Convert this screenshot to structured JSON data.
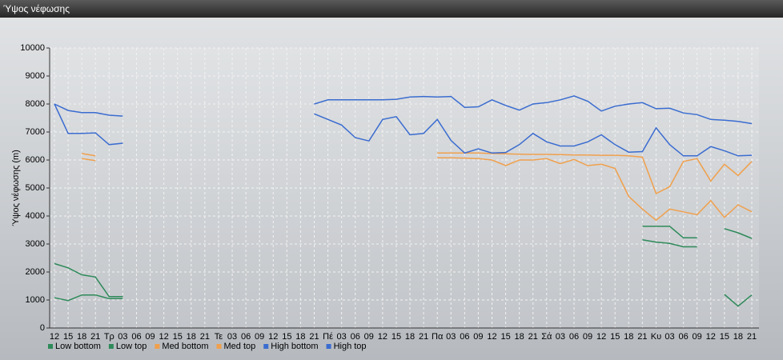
{
  "chart_data": {
    "type": "line",
    "title": "Ύψος νέφωσης",
    "y_label": "Ύψος νέφωσης (m)",
    "categories": [
      "12",
      "15",
      "18",
      "21",
      "Τρ",
      "03",
      "06",
      "09",
      "12",
      "15",
      "18",
      "21",
      "Τε",
      "03",
      "06",
      "09",
      "12",
      "15",
      "18",
      "21",
      "Πέ",
      "03",
      "06",
      "09",
      "12",
      "15",
      "18",
      "21",
      "Πα",
      "03",
      "06",
      "09",
      "12",
      "15",
      "18",
      "21",
      "Σά",
      "03",
      "06",
      "09",
      "12",
      "15",
      "18",
      "21",
      "Κυ",
      "03",
      "06",
      "09",
      "12",
      "15",
      "18",
      "21"
    ],
    "ylim": [
      0,
      10000
    ],
    "yticks": [
      0,
      1000,
      2000,
      3000,
      4000,
      5000,
      6000,
      7000,
      8000,
      9000,
      10000
    ],
    "grid": true,
    "legend": "bottom",
    "series": [
      {
        "name": "Low bottom",
        "color": "#2e8a5a",
        "values": [
          1080,
          980,
          1180,
          1180,
          1050,
          1050,
          null,
          null,
          null,
          null,
          null,
          null,
          null,
          null,
          null,
          null,
          null,
          null,
          null,
          null,
          null,
          null,
          null,
          null,
          null,
          null,
          null,
          null,
          null,
          null,
          null,
          null,
          null,
          null,
          null,
          null,
          null,
          null,
          null,
          null,
          null,
          null,
          null,
          3150,
          3070,
          3020,
          2900,
          2900,
          null,
          1200,
          780,
          1180
        ]
      },
      {
        "name": "Low top",
        "color": "#2e8a5a",
        "values": [
          2300,
          2150,
          1900,
          1820,
          1120,
          1120,
          null,
          null,
          null,
          null,
          null,
          null,
          null,
          null,
          null,
          null,
          null,
          null,
          null,
          null,
          null,
          null,
          null,
          null,
          null,
          null,
          null,
          null,
          null,
          null,
          null,
          null,
          null,
          null,
          null,
          null,
          null,
          null,
          null,
          null,
          null,
          null,
          null,
          3630,
          3630,
          3630,
          3220,
          3220,
          null,
          3550,
          3400,
          3200
        ]
      },
      {
        "name": "Med bottom",
        "color": "#f0a04c",
        "values": [
          null,
          null,
          6050,
          5980,
          null,
          null,
          null,
          null,
          null,
          null,
          null,
          null,
          null,
          null,
          null,
          null,
          null,
          null,
          null,
          null,
          null,
          null,
          null,
          null,
          null,
          null,
          null,
          null,
          6080,
          6080,
          6070,
          6050,
          6000,
          5800,
          6000,
          6000,
          6050,
          5870,
          6020,
          5800,
          5850,
          5700,
          4700,
          4250,
          3850,
          4250,
          4150,
          4050,
          4550,
          3950,
          4400,
          4150
        ]
      },
      {
        "name": "Med top",
        "color": "#f0a04c",
        "values": [
          null,
          null,
          6230,
          6150,
          null,
          null,
          null,
          null,
          null,
          null,
          null,
          null,
          null,
          null,
          null,
          null,
          null,
          null,
          null,
          null,
          null,
          null,
          null,
          null,
          null,
          null,
          null,
          null,
          6250,
          6250,
          6250,
          6250,
          6230,
          6220,
          6210,
          6200,
          6200,
          6190,
          6180,
          6180,
          6170,
          6170,
          6150,
          6100,
          4800,
          5050,
          5950,
          6050,
          5250,
          5850,
          5450,
          5950
        ]
      },
      {
        "name": "High bottom",
        "color": "#3a6cd0",
        "values": [
          8000,
          6950,
          6950,
          6970,
          6550,
          6600,
          null,
          null,
          null,
          null,
          null,
          null,
          null,
          null,
          null,
          null,
          null,
          null,
          null,
          7650,
          7450,
          7250,
          6800,
          6680,
          7450,
          7550,
          6900,
          6950,
          7450,
          6700,
          6250,
          6400,
          6250,
          6270,
          6550,
          6950,
          6650,
          6500,
          6500,
          6650,
          6900,
          6550,
          6280,
          6300,
          7150,
          6550,
          6150,
          6150,
          6480,
          6330,
          6150,
          6170
        ]
      },
      {
        "name": "High top",
        "color": "#3a6cd0",
        "values": [
          8000,
          7770,
          7690,
          7690,
          7600,
          7570,
          null,
          null,
          null,
          null,
          null,
          null,
          null,
          null,
          null,
          null,
          null,
          null,
          null,
          8000,
          8150,
          8150,
          8150,
          8150,
          8150,
          8170,
          8250,
          8270,
          8250,
          8270,
          7880,
          7900,
          8150,
          7950,
          7780,
          8000,
          8050,
          8150,
          8290,
          8100,
          7750,
          7920,
          8000,
          8050,
          7830,
          7850,
          7680,
          7620,
          7450,
          7420,
          7380,
          7300
        ]
      }
    ]
  }
}
